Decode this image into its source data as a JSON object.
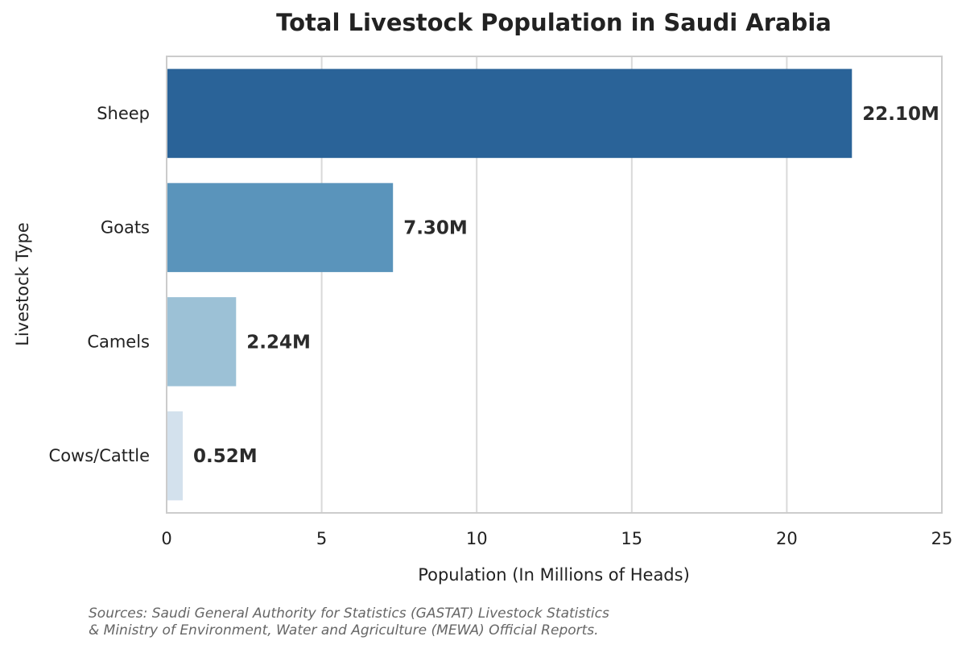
{
  "chart_data": {
    "type": "bar",
    "orientation": "horizontal",
    "title": "Total Livestock Population in Saudi Arabia",
    "xlabel": "Population (In Millions of Heads)",
    "ylabel": "Livestock Type",
    "categories": [
      "Sheep",
      "Goats",
      "Camels",
      "Cows/Cattle"
    ],
    "values": [
      22.1,
      7.3,
      2.24,
      0.52
    ],
    "data_labels": [
      "22.10M",
      "7.30M",
      "2.24M",
      "0.52M"
    ],
    "colors": [
      "#2a6398",
      "#5a94bb",
      "#9cc1d6",
      "#d3e1ed"
    ],
    "xlim": [
      0,
      25
    ],
    "xticks": [
      0,
      5,
      10,
      15,
      20,
      25
    ],
    "grid": "vertical"
  },
  "source_lines": [
    "Sources: Saudi General Authority for Statistics (GASTAT) Livestock Statistics",
    "& Ministry of Environment, Water and Agriculture (MEWA) Official Reports."
  ]
}
